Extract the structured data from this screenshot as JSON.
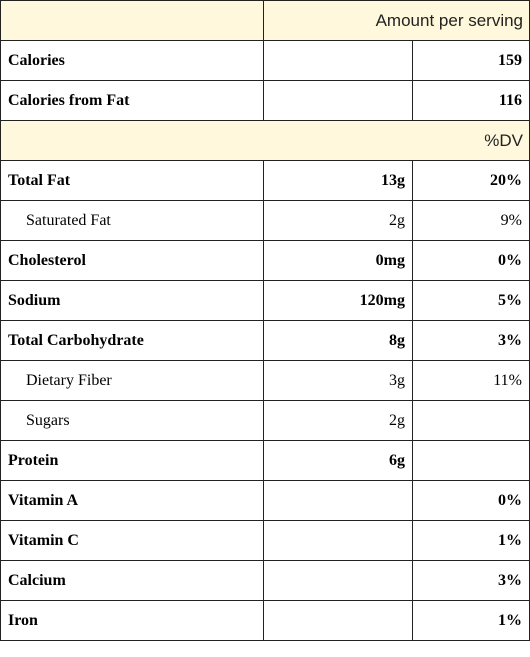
{
  "table": {
    "header": "Amount per serving",
    "energy": [
      {
        "name": "Calories",
        "value": "159"
      },
      {
        "name": "Calories from Fat",
        "value": "116"
      }
    ],
    "dv_header": "%DV",
    "nutrients": [
      {
        "name": "Total Fat",
        "amount": "13g",
        "dv": "20%"
      },
      {
        "name": "Saturated Fat",
        "amount": "2g",
        "dv": "9%"
      },
      {
        "name": "Cholesterol",
        "amount": "0mg",
        "dv": "0%"
      },
      {
        "name": "Sodium",
        "amount": "120mg",
        "dv": "5%"
      },
      {
        "name": "Total Carbohydrate",
        "amount": "8g",
        "dv": "3%"
      },
      {
        "name": "Dietary Fiber",
        "amount": "3g",
        "dv": "11%"
      },
      {
        "name": "Sugars",
        "amount": "2g"
      },
      {
        "name": "Protein",
        "amount": "6g"
      },
      {
        "name": "Vitamin A",
        "dv": "0%"
      },
      {
        "name": "Vitamin C",
        "dv": "1%"
      },
      {
        "name": "Calcium",
        "dv": "3%"
      },
      {
        "name": "Iron",
        "dv": "1%"
      }
    ]
  }
}
